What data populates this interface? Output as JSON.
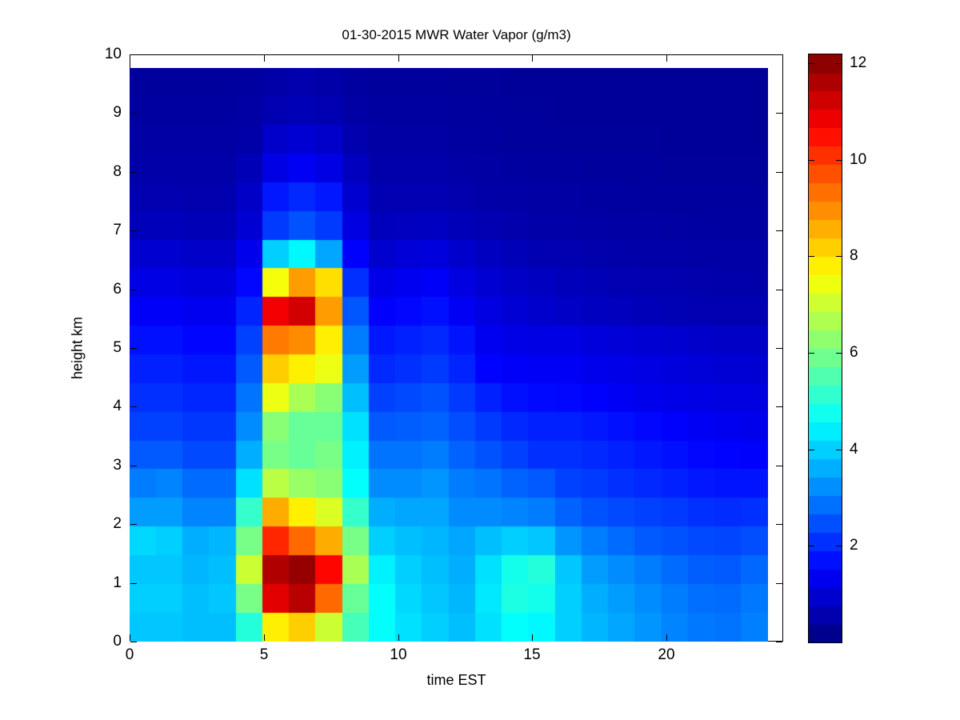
{
  "chart_data": {
    "type": "heatmap",
    "title": "01-30-2015 MWR Water Vapor (g/m3)",
    "xlabel": "time EST",
    "ylabel": "height km",
    "x_ticks": [
      0,
      5,
      10,
      15,
      20
    ],
    "y_ticks": [
      0,
      1,
      2,
      3,
      4,
      5,
      6,
      7,
      8,
      9,
      10
    ],
    "xlim": [
      0,
      24.35
    ],
    "ylim": [
      0,
      10
    ],
    "data_extent": {
      "time_hours": [
        0,
        23.8
      ],
      "height_km": [
        0,
        9.77
      ]
    },
    "colormap": "jet",
    "clim": [
      0,
      12.18
    ],
    "colorbar_ticks": [
      2,
      4,
      6,
      8,
      10,
      12
    ],
    "colorbar_bands": 32,
    "grid_note": "values are g/m3, rows ordered top (9.5 km) to bottom (0.25 km), one column per hour EST",
    "time_hours": [
      0,
      1,
      2,
      3,
      4,
      5,
      6,
      7,
      8,
      9,
      10,
      11,
      12,
      13,
      14,
      15,
      16,
      17,
      18,
      19,
      20,
      21,
      22,
      23
    ],
    "height_km_rows": [
      9.5,
      9.0,
      8.5,
      8.0,
      7.5,
      7.0,
      6.5,
      6.0,
      5.5,
      5.0,
      4.5,
      4.0,
      3.5,
      3.0,
      2.5,
      2.0,
      1.5,
      1.0,
      0.5,
      0.25
    ],
    "values": [
      [
        0.35,
        0.35,
        0.35,
        0.35,
        0.4,
        0.5,
        0.55,
        0.5,
        0.4,
        0.35,
        0.35,
        0.35,
        0.33,
        0.32,
        0.3,
        0.3,
        0.3,
        0.3,
        0.3,
        0.3,
        0.3,
        0.3,
        0.3,
        0.3
      ],
      [
        0.4,
        0.4,
        0.4,
        0.4,
        0.45,
        0.6,
        0.65,
        0.6,
        0.45,
        0.4,
        0.4,
        0.4,
        0.36,
        0.34,
        0.32,
        0.32,
        0.31,
        0.3,
        0.3,
        0.3,
        0.3,
        0.3,
        0.3,
        0.3
      ],
      [
        0.45,
        0.45,
        0.45,
        0.45,
        0.5,
        0.9,
        1.0,
        0.9,
        0.55,
        0.45,
        0.45,
        0.45,
        0.4,
        0.38,
        0.35,
        0.35,
        0.33,
        0.32,
        0.32,
        0.32,
        0.31,
        0.31,
        0.31,
        0.31
      ],
      [
        0.5,
        0.5,
        0.5,
        0.5,
        0.65,
        1.2,
        1.4,
        1.2,
        0.75,
        0.52,
        0.52,
        0.52,
        0.46,
        0.42,
        0.4,
        0.38,
        0.36,
        0.35,
        0.34,
        0.34,
        0.33,
        0.33,
        0.33,
        0.33
      ],
      [
        0.58,
        0.58,
        0.56,
        0.56,
        0.85,
        1.8,
        2.0,
        1.8,
        0.95,
        0.6,
        0.62,
        0.62,
        0.55,
        0.5,
        0.46,
        0.44,
        0.42,
        0.4,
        0.39,
        0.38,
        0.37,
        0.36,
        0.36,
        0.36
      ],
      [
        0.7,
        0.7,
        0.66,
        0.66,
        1.0,
        2.2,
        2.5,
        2.2,
        1.15,
        0.72,
        0.75,
        0.78,
        0.68,
        0.6,
        0.54,
        0.5,
        0.48,
        0.46,
        0.44,
        0.43,
        0.42,
        0.41,
        0.4,
        0.4
      ],
      [
        0.95,
        0.95,
        0.88,
        0.88,
        1.3,
        4.0,
        4.5,
        3.5,
        1.5,
        0.95,
        1.05,
        1.1,
        0.92,
        0.78,
        0.68,
        0.62,
        0.58,
        0.54,
        0.52,
        0.5,
        0.48,
        0.47,
        0.46,
        0.46
      ],
      [
        1.2,
        1.2,
        1.1,
        1.1,
        1.6,
        7.5,
        8.8,
        8.0,
        2.1,
        1.25,
        1.35,
        1.45,
        1.15,
        0.98,
        0.85,
        0.78,
        0.7,
        0.65,
        0.62,
        0.58,
        0.55,
        0.53,
        0.52,
        0.52
      ],
      [
        1.45,
        1.45,
        1.35,
        1.35,
        1.95,
        10.8,
        11.2,
        8.8,
        2.55,
        1.5,
        1.6,
        1.7,
        1.4,
        1.15,
        1.02,
        0.92,
        0.84,
        0.78,
        0.73,
        0.68,
        0.64,
        0.61,
        0.6,
        0.6
      ],
      [
        1.7,
        1.7,
        1.58,
        1.58,
        2.3,
        9.2,
        9.0,
        7.8,
        3.0,
        1.8,
        1.9,
        2.0,
        1.75,
        1.35,
        1.22,
        1.2,
        1.2,
        1.1,
        1.05,
        1.0,
        0.95,
        0.9,
        0.85,
        0.85
      ],
      [
        1.9,
        1.9,
        1.78,
        1.78,
        2.6,
        8.2,
        7.8,
        7.4,
        3.4,
        2.0,
        2.1,
        2.2,
        1.95,
        1.55,
        1.45,
        1.4,
        1.4,
        1.3,
        1.25,
        1.18,
        1.12,
        1.06,
        1.0,
        1.0
      ],
      [
        2.1,
        2.1,
        1.98,
        1.98,
        2.9,
        7.4,
        6.6,
        6.2,
        3.8,
        2.3,
        2.4,
        2.5,
        2.2,
        1.9,
        1.7,
        1.62,
        1.6,
        1.5,
        1.4,
        1.3,
        1.25,
        1.2,
        1.15,
        1.15
      ],
      [
        2.3,
        2.3,
        2.18,
        2.18,
        3.2,
        6.2,
        5.8,
        5.8,
        4.2,
        2.6,
        2.65,
        2.7,
        2.45,
        2.2,
        2.0,
        1.9,
        1.9,
        1.8,
        1.7,
        1.6,
        1.5,
        1.4,
        1.35,
        1.3
      ],
      [
        2.6,
        2.6,
        2.4,
        2.4,
        3.6,
        6.0,
        5.8,
        6.0,
        4.4,
        2.9,
        2.9,
        3.0,
        2.7,
        2.5,
        2.3,
        2.1,
        2.1,
        2.0,
        1.9,
        1.8,
        1.7,
        1.6,
        1.55,
        1.5
      ],
      [
        3.0,
        3.1,
        2.8,
        2.8,
        4.2,
        6.8,
        6.4,
        6.2,
        4.6,
        3.2,
        3.2,
        3.3,
        3.0,
        2.9,
        2.7,
        2.6,
        2.3,
        2.2,
        2.1,
        2.0,
        1.9,
        1.8,
        1.75,
        1.75
      ],
      [
        3.4,
        3.4,
        3.1,
        3.1,
        5.2,
        8.6,
        7.8,
        7.2,
        5.2,
        3.6,
        3.5,
        3.5,
        3.2,
        3.2,
        3.1,
        3.0,
        2.7,
        2.5,
        2.4,
        2.3,
        2.2,
        2.1,
        2.05,
        2.1
      ],
      [
        4.1,
        4.0,
        3.6,
        3.7,
        6.0,
        10.2,
        9.4,
        8.6,
        6.0,
        4.0,
        3.8,
        3.7,
        3.5,
        3.8,
        4.0,
        3.9,
        3.3,
        3.0,
        2.8,
        2.6,
        2.5,
        2.4,
        2.35,
        2.45
      ],
      [
        3.9,
        3.9,
        3.7,
        3.8,
        7.0,
        11.6,
        11.9,
        10.6,
        6.6,
        4.4,
        4.0,
        3.8,
        3.6,
        4.2,
        4.8,
        5.0,
        3.9,
        3.4,
        3.2,
        3.0,
        2.8,
        2.65,
        2.6,
        2.75
      ],
      [
        4.0,
        4.0,
        3.8,
        3.9,
        6.0,
        11.0,
        11.5,
        9.4,
        5.8,
        4.6,
        4.1,
        3.9,
        3.7,
        4.3,
        4.9,
        4.8,
        4.0,
        3.6,
        3.4,
        3.2,
        3.0,
        2.85,
        2.8,
        2.95
      ],
      [
        3.9,
        3.9,
        3.8,
        3.8,
        5.0,
        7.8,
        8.2,
        7.0,
        5.4,
        4.6,
        4.2,
        4.0,
        3.8,
        4.2,
        4.6,
        4.5,
        4.0,
        3.7,
        3.5,
        3.3,
        3.1,
        2.95,
        2.9,
        3.05
      ]
    ]
  },
  "colors": {
    "background": "#ffffff",
    "axis": "#000000",
    "text": "#000000"
  }
}
